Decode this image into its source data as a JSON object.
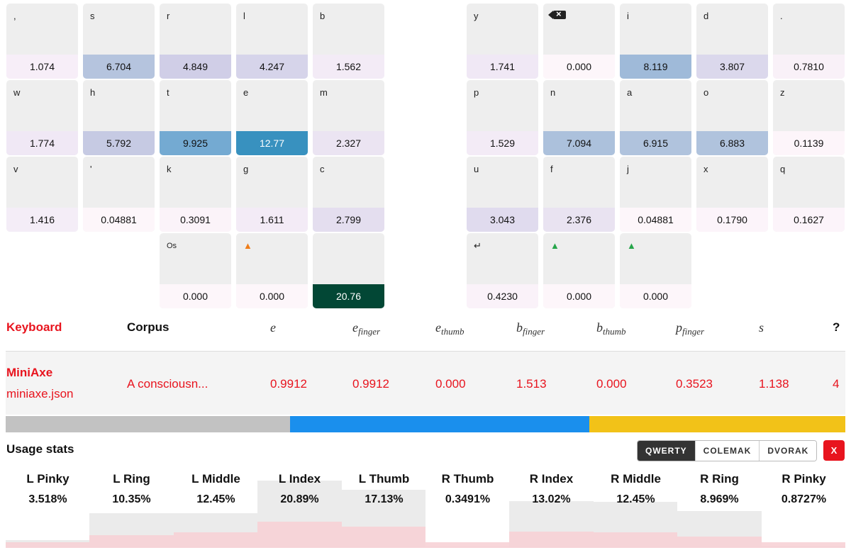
{
  "keyboard": {
    "left_keys": [
      {
        "label": ",",
        "value": "1.074",
        "color": "#f7eef8"
      },
      {
        "label": "s",
        "value": "6.704",
        "color": "#b5c4de"
      },
      {
        "label": "r",
        "value": "4.849",
        "color": "#d0cee7"
      },
      {
        "label": "l",
        "value": "4.247",
        "color": "#d6d4ea"
      },
      {
        "label": "b",
        "value": "1.562",
        "color": "#f3ebf6"
      },
      {
        "label": "w",
        "value": "1.774",
        "color": "#f0e8f5"
      },
      {
        "label": "h",
        "value": "5.792",
        "color": "#c6cae3"
      },
      {
        "label": "t",
        "value": "9.925",
        "color": "#74aad2"
      },
      {
        "label": "e",
        "value": "12.77",
        "color": "#3891bf"
      },
      {
        "label": "m",
        "value": "2.327",
        "color": "#ebe4f2"
      },
      {
        "label": "v",
        "value": "1.416",
        "color": "#f4edf7"
      },
      {
        "label": "'",
        "value": "0.04881",
        "color": "#fdf6fa"
      },
      {
        "label": "k",
        "value": "0.3091",
        "color": "#fbf3f9"
      },
      {
        "label": "g",
        "value": "1.611",
        "color": "#f3ebf6"
      },
      {
        "label": "c",
        "value": "2.799",
        "color": "#e4deef"
      },
      {
        "label": "Os",
        "value": "0.000",
        "color": "#fdf6fa"
      },
      {
        "label": "▲",
        "value": "0.000",
        "color": "#fdf6fa"
      },
      {
        "label": "",
        "value": "20.76",
        "color": "#024735"
      }
    ],
    "right_keys": [
      {
        "label": "y",
        "value": "1.741",
        "color": "#f0e8f5"
      },
      {
        "label": "backspace-icon",
        "value": "0.000",
        "color": "#fdf6fa"
      },
      {
        "label": "i",
        "value": "8.119",
        "color": "#9fbad9"
      },
      {
        "label": "d",
        "value": "3.807",
        "color": "#dbd8ec"
      },
      {
        "label": ".",
        "value": "0.7810",
        "color": "#f9f1f8"
      },
      {
        "label": "p",
        "value": "1.529",
        "color": "#f3ebf6"
      },
      {
        "label": "n",
        "value": "7.094",
        "color": "#acc1dc"
      },
      {
        "label": "a",
        "value": "6.915",
        "color": "#b0c3dd"
      },
      {
        "label": "o",
        "value": "6.883",
        "color": "#b0c3dd"
      },
      {
        "label": "z",
        "value": "0.1139",
        "color": "#fdf5fa"
      },
      {
        "label": "u",
        "value": "3.043",
        "color": "#e0dbee"
      },
      {
        "label": "f",
        "value": "2.376",
        "color": "#e9e3f1"
      },
      {
        "label": "j",
        "value": "0.04881",
        "color": "#fdf6fa"
      },
      {
        "label": "x",
        "value": "0.1790",
        "color": "#fcf4fa"
      },
      {
        "label": "q",
        "value": "0.1627",
        "color": "#fcf4fa"
      },
      {
        "label": "↵",
        "value": "0.4230",
        "color": "#faf2f9"
      },
      {
        "label": "▲",
        "value": "0.000",
        "color": "#fdf6fa"
      },
      {
        "label": "▲",
        "value": "0.000",
        "color": "#fdf6fa"
      }
    ]
  },
  "table": {
    "headers": {
      "keyboard": "Keyboard",
      "corpus": "Corpus",
      "e": "e",
      "e_finger": "e",
      "e_finger_sub": "finger",
      "e_thumb": "e",
      "e_thumb_sub": "thumb",
      "b_finger": "b",
      "b_finger_sub": "finger",
      "b_thumb": "b",
      "b_thumb_sub": "thumb",
      "p_finger": "p",
      "p_finger_sub": "finger",
      "s": "s",
      "help": "?"
    },
    "row": {
      "keyboard_name": "MiniAxe",
      "keyboard_file": "miniaxe.json",
      "corpus": "A consciousn...",
      "e": "0.9912",
      "e_finger": "0.9912",
      "e_thumb": "0.000",
      "b_finger": "1.513",
      "b_thumb": "0.000",
      "p_finger": "0.3523",
      "s": "1.138",
      "count": "4"
    }
  },
  "balance_bar": {
    "segments": [
      {
        "color": "#c2c2c2",
        "fraction": 0.339
      },
      {
        "color": "#1a8fed",
        "fraction": 0.356
      },
      {
        "color": "#f2c218",
        "fraction": 0.305
      }
    ]
  },
  "usage": {
    "title": "Usage stats",
    "layout_buttons": [
      "QWERTY",
      "COLEMAK",
      "DVORAK"
    ],
    "active_layout": "QWERTY",
    "close_label": "X",
    "fingers": [
      {
        "name": "L Pinky",
        "value": "3.518%"
      },
      {
        "name": "L Ring",
        "value": "10.35%"
      },
      {
        "name": "L Middle",
        "value": "12.45%"
      },
      {
        "name": "L Index",
        "value": "20.89%"
      },
      {
        "name": "L Thumb",
        "value": "17.13%"
      },
      {
        "name": "R Thumb",
        "value": "0.3491%"
      },
      {
        "name": "R Index",
        "value": "13.02%"
      },
      {
        "name": "R Middle",
        "value": "12.45%"
      },
      {
        "name": "R Ring",
        "value": "8.969%"
      },
      {
        "name": "R Pinky",
        "value": "0.8727%"
      }
    ],
    "qwerty_reference": [
      2.0,
      9.0,
      9.0,
      17.3,
      15.0,
      0.35,
      12.0,
      11.9,
      9.5,
      0.5
    ],
    "colors": {
      "current": "#f7d2d6",
      "reference": "#ebebeb"
    }
  }
}
